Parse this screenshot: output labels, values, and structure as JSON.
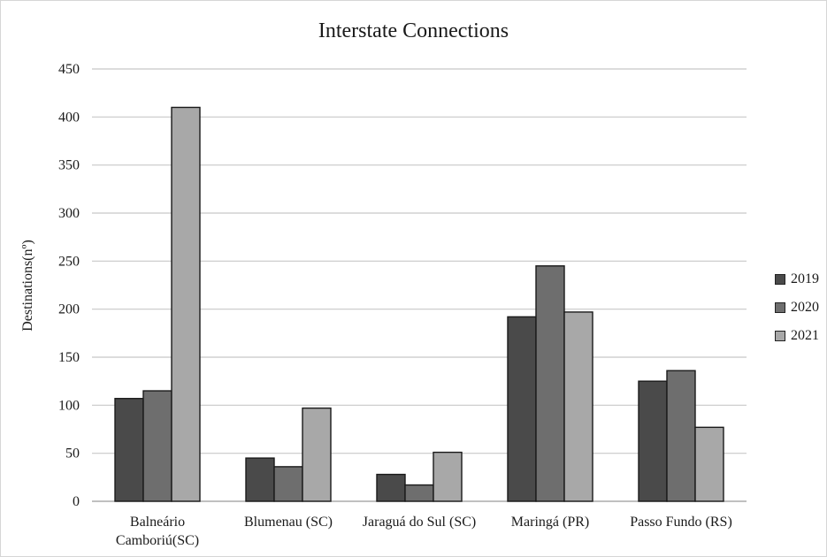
{
  "chart_data": {
    "type": "bar",
    "title": "Interstate Connections",
    "xlabel": "",
    "ylabel": "Destinations(nº)",
    "ylim": [
      0,
      450
    ],
    "yticks": [
      0,
      50,
      100,
      150,
      200,
      250,
      300,
      350,
      400,
      450
    ],
    "grid": true,
    "legend_position": "right",
    "categories": [
      [
        "Balneário",
        "Camboriú(SC)"
      ],
      [
        "Blumenau (SC)"
      ],
      [
        "Jaraguá do Sul (SC)"
      ],
      [
        "Maringá (PR)"
      ],
      [
        "Passo Fundo (RS)"
      ]
    ],
    "series": [
      {
        "name": "2019",
        "color": "#4a4a4a",
        "values": [
          107,
          45,
          28,
          192,
          125
        ]
      },
      {
        "name": "2020",
        "color": "#6e6e6e",
        "values": [
          115,
          36,
          17,
          245,
          136
        ]
      },
      {
        "name": "2021",
        "color": "#a8a8a8",
        "values": [
          410,
          97,
          51,
          197,
          77
        ]
      }
    ]
  }
}
